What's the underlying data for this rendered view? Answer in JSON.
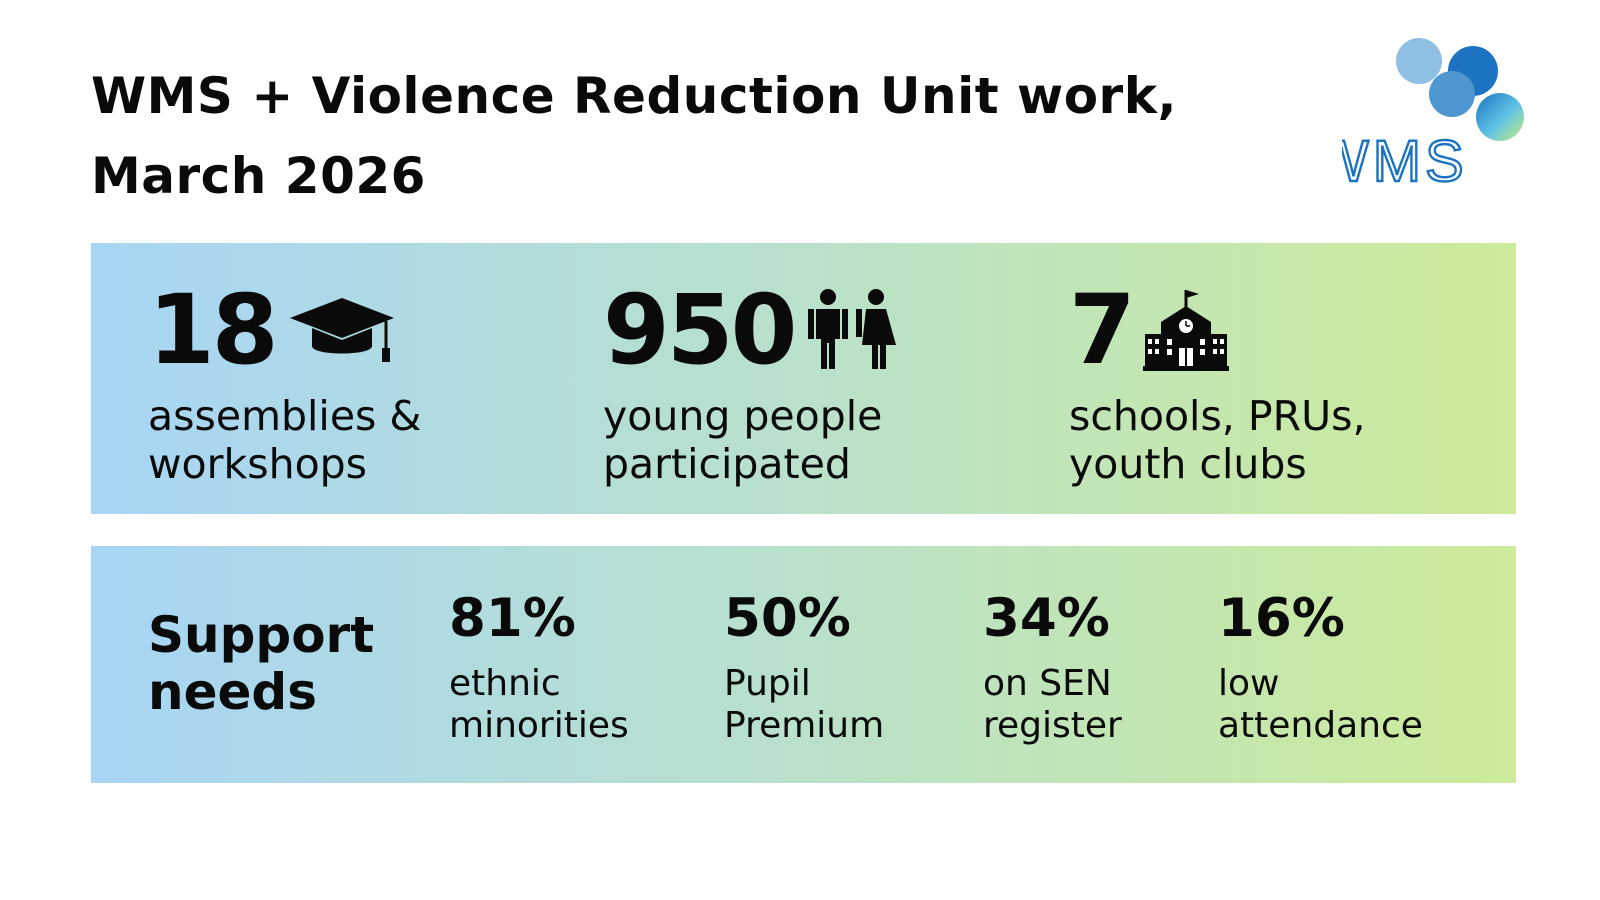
{
  "header": {
    "title_line1": "WMS + Violence Reduction Unit work,",
    "title_line2": "March 2026",
    "logo_text": "WMS"
  },
  "colors": {
    "band_gradient": [
      "#a7d5f5",
      "#b8e0cf",
      "#cdeb9a"
    ],
    "logo_blue": "#1c73c2",
    "text": "#0a0a0a"
  },
  "stats": [
    {
      "number": "18",
      "icon": "graduation-cap-icon",
      "line1": "assemblies &",
      "line2": "workshops"
    },
    {
      "number": "950",
      "icon": "people-icon",
      "line1": "young people",
      "line2": "participated"
    },
    {
      "number": "7",
      "icon": "school-building-icon",
      "line1": "schools, PRUs,",
      "line2": "youth clubs"
    }
  ],
  "support": {
    "title_line1": "Support",
    "title_line2": "needs",
    "metrics": [
      {
        "pct": "81%",
        "line1": "ethnic",
        "line2": "minorities"
      },
      {
        "pct": "50%",
        "line1": "Pupil",
        "line2": "Premium"
      },
      {
        "pct": "34%",
        "line1": "on SEN",
        "line2": "register"
      },
      {
        "pct": "16%",
        "line1": "low",
        "line2": "attendance"
      }
    ]
  }
}
